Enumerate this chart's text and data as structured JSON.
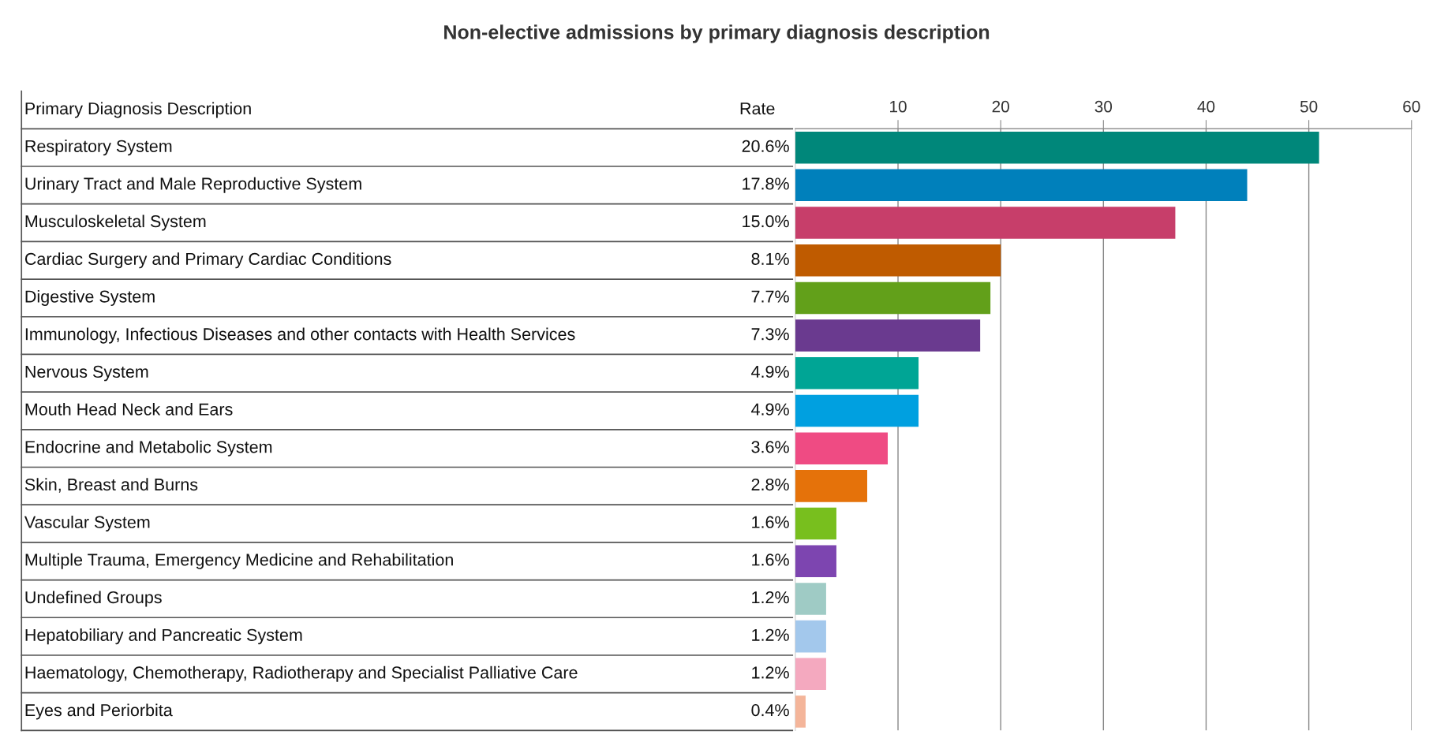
{
  "chart_data": {
    "type": "bar",
    "orientation": "horizontal",
    "title": "Non-elective admissions by primary diagnosis description",
    "ylabel": "Primary Diagnosis Description",
    "annotations": [
      "Rate",
      "20.6%",
      "17.8%",
      "15.0%",
      "8.1%",
      "7.7%",
      "7.3%",
      "4.9%",
      "4.9%",
      "3.6%",
      "2.8%",
      "1.6%",
      "1.6%",
      "1.2%",
      "1.2%",
      "1.2%",
      "0.4%"
    ],
    "categories": [
      "Respiratory System",
      "Urinary Tract and Male Reproductive System",
      "Musculoskeletal System",
      "Cardiac Surgery and Primary Cardiac Conditions",
      "Digestive System",
      "Immunology, Infectious Diseases and other contacts with Health Services",
      "Nervous System",
      "Mouth Head Neck and Ears",
      "Endocrine and Metabolic System",
      "Skin, Breast and Burns",
      "Vascular System",
      "Multiple Trauma, Emergency Medicine and Rehabilitation",
      "Undefined Groups",
      "Hepatobiliary and Pancreatic System",
      "Haematology, Chemotherapy, Radiotherapy and Specialist Palliative Care",
      "Eyes and Periorbita"
    ],
    "series": [
      {
        "axis": "x2",
        "values": [
          51,
          44,
          37,
          20,
          19,
          18,
          12,
          12,
          9,
          7,
          4,
          4,
          3,
          3,
          3,
          1
        ]
      }
    ],
    "colors": [
      "#00877a",
      "#0080bb",
      "#c73e6a",
      "#bf5b00",
      "#62a01a",
      "#6a3a8f",
      "#00a595",
      "#00a0e0",
      "#ef4b83",
      "#e5720a",
      "#78bf1e",
      "#7d45b0",
      "#9fcbc5",
      "#a3c8ec",
      "#f4a9bf",
      "#f4b59a"
    ],
    "x2lim": [
      0,
      60
    ],
    "x2ticks": [
      10,
      20,
      30,
      40,
      50,
      60
    ],
    "grid": "x"
  }
}
